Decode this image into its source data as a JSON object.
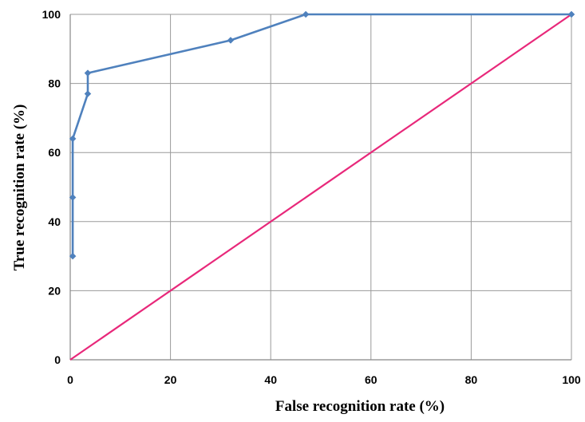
{
  "chart_data": {
    "type": "line",
    "title": "",
    "xlabel": "False recognition rate (%)",
    "ylabel": "True recognition rate (%)",
    "xlim": [
      0,
      100
    ],
    "ylim": [
      0,
      100
    ],
    "x_ticks": [
      "0",
      "20",
      "40",
      "60",
      "80",
      "100"
    ],
    "y_ticks": [
      "0",
      "20",
      "40",
      "60",
      "80",
      "100"
    ],
    "grid": true,
    "legend": "none",
    "series": [
      {
        "color": "#4f81bd",
        "marker": "diamond",
        "points": [
          {
            "x": 0.5,
            "y": 30
          },
          {
            "x": 0.5,
            "y": 47
          },
          {
            "x": 0.5,
            "y": 64
          },
          {
            "x": 3.5,
            "y": 77
          },
          {
            "x": 3.5,
            "y": 83
          },
          {
            "x": 32,
            "y": 92.5
          },
          {
            "x": 47,
            "y": 100
          },
          {
            "x": 100,
            "y": 100
          }
        ]
      },
      {
        "color": "#e8287a",
        "marker": "none",
        "points": [
          {
            "x": 0,
            "y": 0
          },
          {
            "x": 100,
            "y": 100
          }
        ]
      }
    ]
  }
}
